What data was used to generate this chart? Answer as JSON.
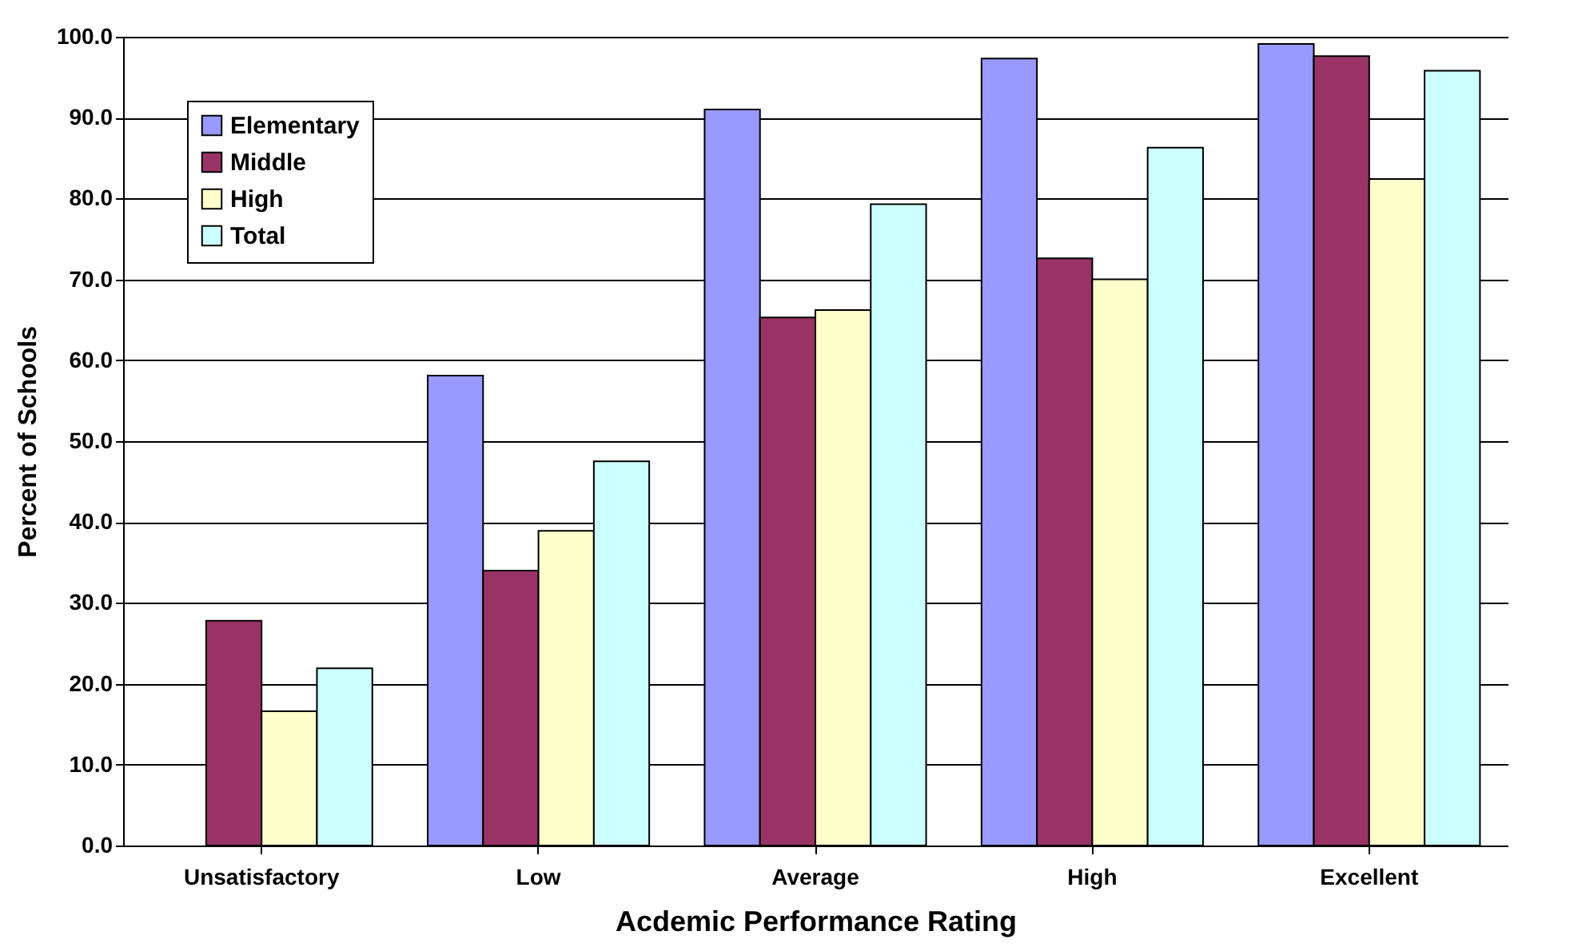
{
  "chart_data": {
    "type": "bar",
    "xlabel": "Acdemic Performance Rating",
    "ylabel": "Percent of Schools",
    "categories": [
      "Unsatisfactory",
      "Low",
      "Average",
      "High",
      "Excellent"
    ],
    "series": [
      {
        "name": "Elementary",
        "color": "#9999ff",
        "values": [
          null,
          58.1,
          91.0,
          97.3,
          99.1
        ]
      },
      {
        "name": "Middle",
        "color": "#993366",
        "values": [
          27.8,
          34.0,
          65.3,
          72.6,
          97.6
        ]
      },
      {
        "name": "High",
        "color": "#ffffcc",
        "values": [
          16.6,
          38.9,
          66.2,
          70.0,
          82.4
        ]
      },
      {
        "name": "Total",
        "color": "#ccffff",
        "values": [
          21.9,
          47.5,
          79.3,
          86.3,
          95.8
        ]
      }
    ],
    "ylim": [
      0,
      100
    ],
    "yticks": [
      {
        "value": 0,
        "label": "0.0"
      },
      {
        "value": 10,
        "label": "10.0"
      },
      {
        "value": 20,
        "label": "20.0"
      },
      {
        "value": 30,
        "label": "30.0"
      },
      {
        "value": 40,
        "label": "40.0"
      },
      {
        "value": 50,
        "label": "50.0"
      },
      {
        "value": 60,
        "label": "60.0"
      },
      {
        "value": 70,
        "label": "70.0"
      },
      {
        "value": 80,
        "label": "80.0"
      },
      {
        "value": 90,
        "label": "90.0"
      },
      {
        "value": 100,
        "label": "100.0"
      }
    ],
    "grid": "y",
    "legend": "top left"
  }
}
